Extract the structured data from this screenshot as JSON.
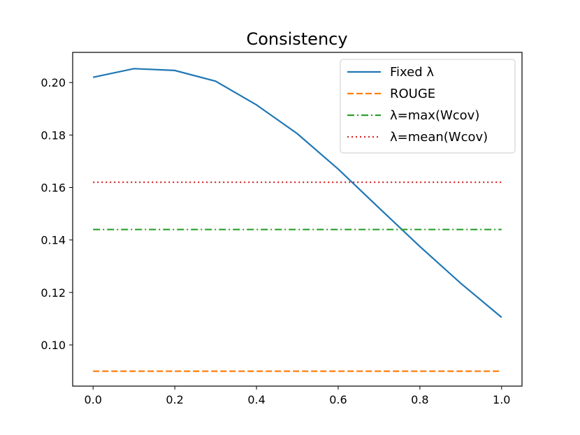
{
  "chart_data": {
    "type": "line",
    "title": "Consistency",
    "xlabel": "",
    "ylabel": "",
    "xlim": [
      -0.05,
      1.05
    ],
    "ylim": [
      0.0843,
      0.2115
    ],
    "xticks": [
      0.0,
      0.2,
      0.4,
      0.6,
      0.8,
      1.0
    ],
    "xtick_labels": [
      "0.0",
      "0.2",
      "0.4",
      "0.6",
      "0.8",
      "1.0"
    ],
    "yticks": [
      0.1,
      0.12,
      0.14,
      0.16,
      0.18,
      0.2
    ],
    "ytick_labels": [
      "0.10",
      "0.12",
      "0.14",
      "0.16",
      "0.18",
      "0.20"
    ],
    "grid": false,
    "legend_position": "upper right",
    "x": [
      0.0,
      0.1,
      0.2,
      0.3,
      0.4,
      0.5,
      0.6,
      0.7,
      0.8,
      0.9,
      1.0
    ],
    "series": [
      {
        "name": "Fixed λ",
        "color": "#1f77b4",
        "style": "solid",
        "values": [
          0.202,
          0.2053,
          0.2046,
          0.2005,
          0.1915,
          0.1805,
          0.167,
          0.1522,
          0.1375,
          0.1235,
          0.1105
        ]
      },
      {
        "name": "ROUGE",
        "color": "#ff7f0e",
        "style": "dashed",
        "values": [
          0.09,
          0.09,
          0.09,
          0.09,
          0.09,
          0.09,
          0.09,
          0.09,
          0.09,
          0.09,
          0.09
        ]
      },
      {
        "name": "λ=max(Wcov)",
        "color": "#2ca02c",
        "style": "dashdot",
        "values": [
          0.144,
          0.144,
          0.144,
          0.144,
          0.144,
          0.144,
          0.144,
          0.144,
          0.144,
          0.144,
          0.144
        ]
      },
      {
        "name": "λ=mean(Wcov)",
        "color": "#d62728",
        "style": "dotted",
        "values": [
          0.162,
          0.162,
          0.162,
          0.162,
          0.162,
          0.162,
          0.162,
          0.162,
          0.162,
          0.162,
          0.162
        ]
      }
    ]
  }
}
